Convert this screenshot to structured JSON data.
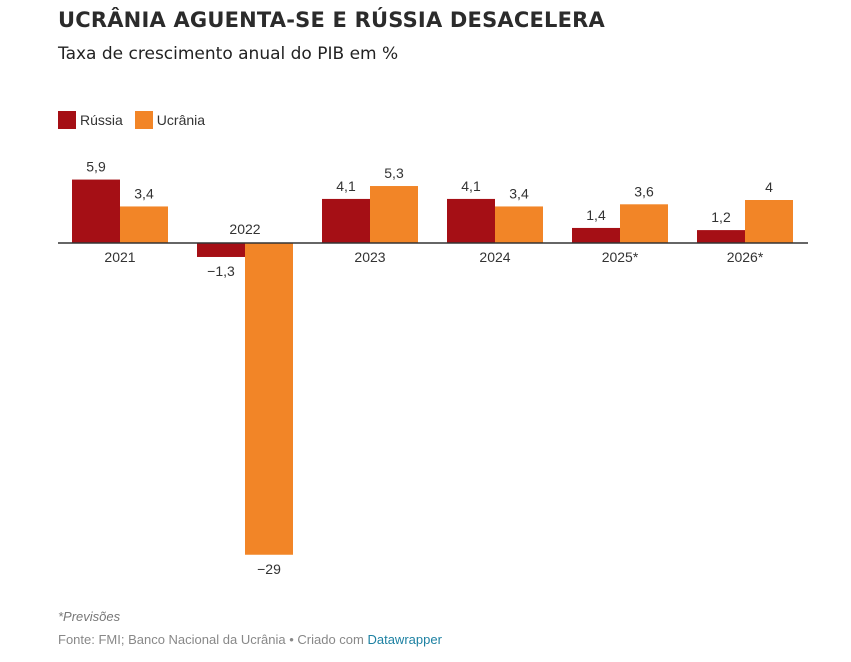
{
  "chart_data": {
    "type": "bar",
    "title": "UCRÂNIA AGUENTA-SE E RÚSSIA DESACELERA",
    "subtitle": "Taxa de crescimento anual do PIB em %",
    "xlabel": "",
    "ylabel": "",
    "categories": [
      "2021",
      "2022",
      "2023",
      "2024",
      "2025*",
      "2026*"
    ],
    "series": [
      {
        "name": "Rússia",
        "color": "#a50f15",
        "values": [
          5.9,
          -1.3,
          4.1,
          4.1,
          1.4,
          1.2
        ],
        "labels": [
          "5,9",
          "−1,3",
          "4,1",
          "4,1",
          "1,4",
          "1,2"
        ]
      },
      {
        "name": "Ucrânia",
        "color": "#f28527",
        "values": [
          3.4,
          -29,
          5.3,
          3.4,
          3.6,
          4
        ],
        "labels": [
          "3,4",
          "−29",
          "5,3",
          "3,4",
          "3,6",
          "4"
        ]
      }
    ],
    "ylim": [
      -29,
      5.9
    ],
    "grid": false,
    "legend": "top-left",
    "note": "*Previsões",
    "source_prefix": "Fonte: FMI; Banco Nacional da Ucrânia • Criado com ",
    "source_link": "Datawrapper"
  }
}
